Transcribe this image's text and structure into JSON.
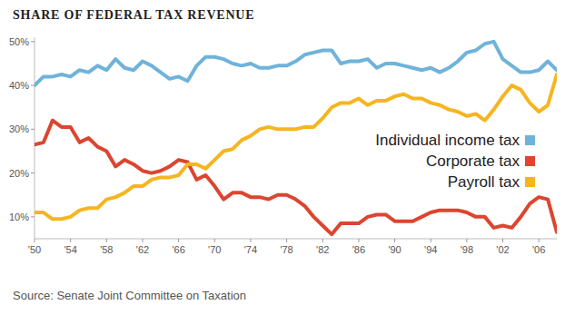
{
  "chart_data": {
    "type": "line",
    "title": "SHARE OF FEDERAL TAX REVENUE",
    "source": "Source: Senate Joint Committee on Taxation",
    "x": [
      1950,
      1951,
      1952,
      1953,
      1954,
      1955,
      1956,
      1957,
      1958,
      1959,
      1960,
      1961,
      1962,
      1963,
      1964,
      1965,
      1966,
      1967,
      1968,
      1969,
      1970,
      1971,
      1972,
      1973,
      1974,
      1975,
      1976,
      1977,
      1978,
      1979,
      1980,
      1981,
      1982,
      1983,
      1984,
      1985,
      1986,
      1987,
      1988,
      1989,
      1990,
      1991,
      1992,
      1993,
      1994,
      1995,
      1996,
      1997,
      1998,
      1999,
      2000,
      2001,
      2002,
      2003,
      2004,
      2005,
      2006,
      2007,
      2008
    ],
    "series": [
      {
        "name": "Individual income tax",
        "color": "#6fb3da",
        "values": [
          40,
          42,
          42,
          42.5,
          42,
          43.5,
          43,
          44.5,
          43.5,
          46,
          44,
          43.5,
          45.5,
          44.5,
          43,
          41.5,
          42,
          41,
          44.5,
          46.5,
          46.5,
          46,
          45,
          44.5,
          45,
          44,
          44,
          44.5,
          44.5,
          45.5,
          47,
          47.5,
          48,
          48,
          45,
          45.5,
          45.5,
          46,
          44,
          45,
          45,
          44.5,
          44,
          43.5,
          44,
          43,
          44,
          45.5,
          47.5,
          48,
          49.5,
          50,
          46,
          44.5,
          43,
          43,
          43.5,
          45.5,
          43.5
        ]
      },
      {
        "name": "Corporate tax",
        "color": "#dc4530",
        "values": [
          26.5,
          27,
          32,
          30.5,
          30.5,
          27,
          28,
          26,
          25,
          21.5,
          23,
          22,
          20.5,
          20,
          20.5,
          21.5,
          23,
          22.5,
          18.5,
          19.5,
          17,
          14,
          15.5,
          15.5,
          14.5,
          14.5,
          14,
          15,
          15,
          14,
          12.5,
          10,
          8,
          6,
          8.5,
          8.5,
          8.5,
          10,
          10.5,
          10.5,
          9,
          9,
          9,
          10,
          11,
          11.5,
          11.5,
          11.5,
          11,
          10,
          10,
          7.5,
          8,
          7.5,
          10,
          13,
          14.5,
          14,
          6.5
        ]
      },
      {
        "name": "Payroll tax",
        "color": "#f6b51f",
        "values": [
          11,
          11,
          9.5,
          9.5,
          10,
          11.5,
          12,
          12,
          14,
          14.5,
          15.5,
          17,
          17,
          18.5,
          19,
          19,
          19.5,
          22,
          22,
          21,
          23,
          25,
          25.5,
          27.5,
          28.5,
          30,
          30.5,
          30,
          30,
          30,
          30.5,
          30.5,
          32.5,
          35,
          36,
          36,
          37,
          35.5,
          36.5,
          36.5,
          37.5,
          38,
          37,
          37,
          36,
          35.5,
          34.5,
          34,
          33,
          33.5,
          32,
          34.5,
          37.5,
          40,
          39,
          36,
          34,
          35.5,
          42.5
        ]
      }
    ],
    "xlim": [
      1950,
      2008
    ],
    "xticks": [
      {
        "value": 1950,
        "label": "'50"
      },
      {
        "value": 1954,
        "label": "'54"
      },
      {
        "value": 1958,
        "label": "'58"
      },
      {
        "value": 1962,
        "label": "'62"
      },
      {
        "value": 1966,
        "label": "'66"
      },
      {
        "value": 1970,
        "label": "'70"
      },
      {
        "value": 1974,
        "label": "'74"
      },
      {
        "value": 1978,
        "label": "'78"
      },
      {
        "value": 1982,
        "label": "'82"
      },
      {
        "value": 1986,
        "label": "'86"
      },
      {
        "value": 1990,
        "label": "'90"
      },
      {
        "value": 1994,
        "label": "'94"
      },
      {
        "value": 1998,
        "label": "'98"
      },
      {
        "value": 2002,
        "label": "'02"
      },
      {
        "value": 2006,
        "label": "'06"
      }
    ],
    "ylim": [
      5,
      51
    ],
    "yticks": [
      {
        "value": 10,
        "label": "10%"
      },
      {
        "value": 20,
        "label": "20%"
      },
      {
        "value": 30,
        "label": "30%"
      },
      {
        "value": 40,
        "label": "40%"
      },
      {
        "value": 50,
        "label": "50%"
      }
    ],
    "grid": false,
    "legend": "right"
  }
}
